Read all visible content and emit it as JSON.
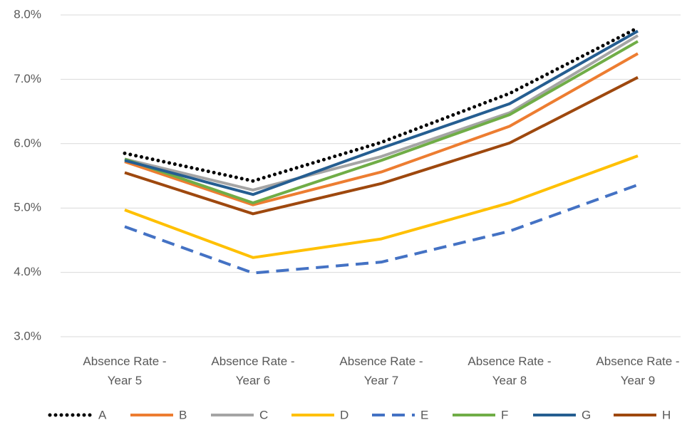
{
  "chart_data": {
    "type": "line",
    "categories": [
      "Absence Rate - Year 5",
      "Absence Rate - Year 6",
      "Absence Rate - Year 7",
      "Absence Rate - Year 8",
      "Absence Rate - Year 9"
    ],
    "series": [
      {
        "name": "A",
        "color": "#000000",
        "line_style": "dotted",
        "values": [
          5.85,
          5.42,
          6.02,
          6.78,
          7.8
        ]
      },
      {
        "name": "B",
        "color": "#ed7d31",
        "line_style": "solid",
        "values": [
          5.72,
          5.05,
          5.56,
          6.27,
          7.4
        ]
      },
      {
        "name": "C",
        "color": "#a5a5a5",
        "line_style": "solid",
        "values": [
          5.76,
          5.28,
          5.8,
          6.48,
          7.68
        ]
      },
      {
        "name": "D",
        "color": "#ffc000",
        "line_style": "solid",
        "values": [
          4.97,
          4.23,
          4.52,
          5.08,
          5.81
        ]
      },
      {
        "name": "E",
        "color": "#4472c4",
        "line_style": "dashed",
        "values": [
          4.71,
          3.99,
          4.16,
          4.64,
          5.36
        ]
      },
      {
        "name": "F",
        "color": "#70ad47",
        "line_style": "solid",
        "values": [
          5.76,
          5.08,
          5.74,
          6.45,
          7.59
        ]
      },
      {
        "name": "G",
        "color": "#255e91",
        "line_style": "solid",
        "values": [
          5.74,
          5.21,
          5.93,
          6.62,
          7.75
        ]
      },
      {
        "name": "H",
        "color": "#9e480e",
        "line_style": "solid",
        "values": [
          5.55,
          4.91,
          5.38,
          6.01,
          7.03
        ]
      }
    ],
    "ylim": [
      3,
      8
    ],
    "yticks": [
      {
        "value": 3,
        "label": "3.0%"
      },
      {
        "value": 4,
        "label": "4.0%"
      },
      {
        "value": 5,
        "label": "5.0%"
      },
      {
        "value": 6,
        "label": "6.0%"
      },
      {
        "value": 7,
        "label": "7.0%"
      },
      {
        "value": 8,
        "label": "8.0%"
      }
    ],
    "grid": true,
    "legend": "bottom"
  }
}
